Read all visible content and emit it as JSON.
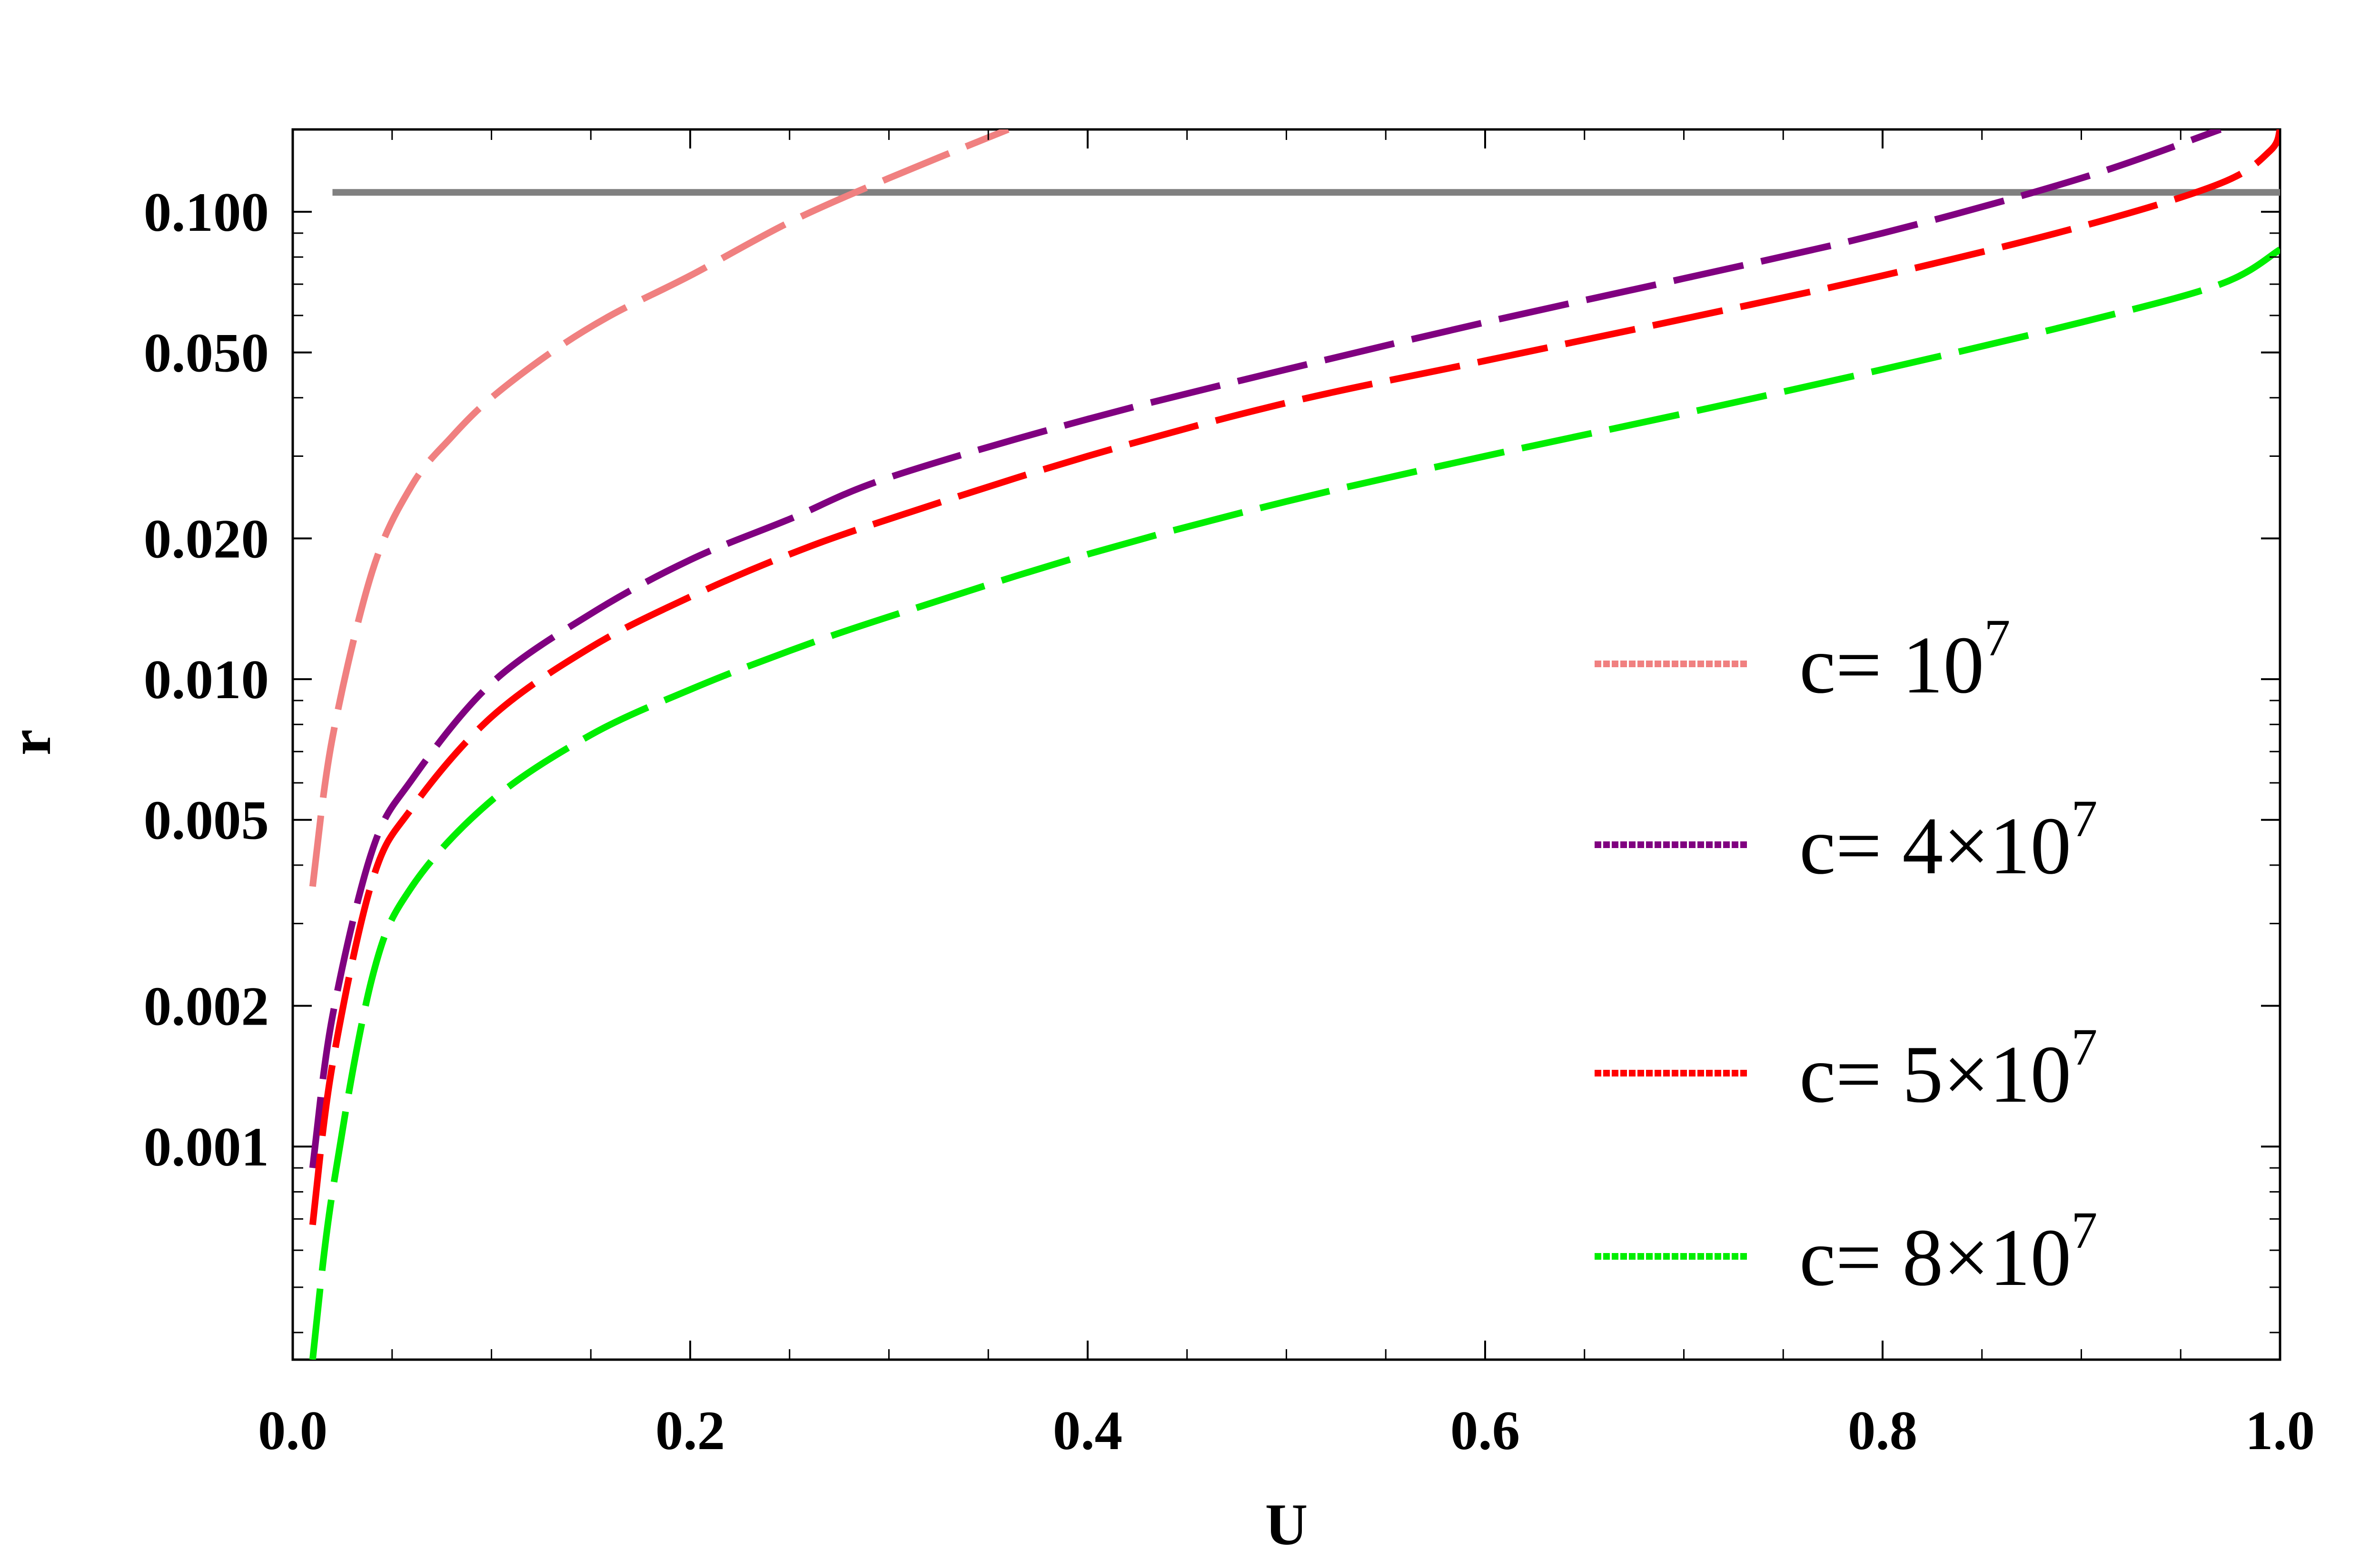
{
  "chart_data": {
    "type": "line",
    "title": "",
    "xlabel": "U",
    "ylabel": "r",
    "xlim": [
      0.0,
      1.0
    ],
    "ylim": [
      0.00035,
      0.15
    ],
    "y_scale": "log",
    "grid": false,
    "legend_position": "right",
    "x_ticks": [
      "0.0",
      "0.2",
      "0.4",
      "0.6",
      "0.8",
      "1.0"
    ],
    "x_tick_values": [
      0.0,
      0.2,
      0.4,
      0.6,
      0.8,
      1.0
    ],
    "y_ticks": [
      "0.001",
      "0.002",
      "0.005",
      "0.010",
      "0.020",
      "0.050",
      "0.100"
    ],
    "y_tick_values": [
      0.001,
      0.002,
      0.005,
      0.01,
      0.02,
      0.05,
      0.1
    ],
    "reference_line": {
      "y": 0.11,
      "color": "#808080"
    },
    "series": [
      {
        "legend_base": "c= 10",
        "legend_sup": "7",
        "color": "#F08080",
        "x": [
          0.01,
          0.02,
          0.04,
          0.06,
          0.08,
          0.1,
          0.13,
          0.16,
          0.2,
          0.25,
          0.3,
          0.36
        ],
        "y": [
          0.0036,
          0.0075,
          0.017,
          0.026,
          0.033,
          0.04,
          0.05,
          0.06,
          0.073,
          0.095,
          0.118,
          0.15
        ]
      },
      {
        "legend_base": "c= 4×10",
        "legend_sup": "7",
        "color": "#800080",
        "x": [
          0.01,
          0.02,
          0.04,
          0.06,
          0.1,
          0.15,
          0.2,
          0.25,
          0.3,
          0.4,
          0.5,
          0.6,
          0.7,
          0.8,
          0.9,
          0.97
        ],
        "y": [
          0.0009,
          0.0019,
          0.0043,
          0.0061,
          0.0098,
          0.0138,
          0.018,
          0.022,
          0.027,
          0.036,
          0.046,
          0.058,
          0.072,
          0.09,
          0.118,
          0.15
        ]
      },
      {
        "legend_base": "c= 5×10",
        "legend_sup": "7",
        "color": "#FF0000",
        "x": [
          0.01,
          0.02,
          0.04,
          0.06,
          0.1,
          0.15,
          0.2,
          0.25,
          0.3,
          0.4,
          0.5,
          0.6,
          0.7,
          0.8,
          0.9,
          0.97,
          0.995,
          1.0
        ],
        "y": [
          0.00068,
          0.0015,
          0.0037,
          0.0053,
          0.0083,
          0.0117,
          0.015,
          0.0185,
          0.022,
          0.03,
          0.039,
          0.048,
          0.059,
          0.073,
          0.093,
          0.115,
          0.135,
          0.15
        ]
      },
      {
        "legend_base": "c= 8×10",
        "legend_sup": "7",
        "color": "#00EE00",
        "x": [
          0.01,
          0.02,
          0.04,
          0.06,
          0.1,
          0.15,
          0.2,
          0.25,
          0.3,
          0.4,
          0.5,
          0.6,
          0.7,
          0.8,
          0.9,
          0.97,
          1.0
        ],
        "y": [
          0.00035,
          0.0008,
          0.0023,
          0.0036,
          0.0055,
          0.0076,
          0.0095,
          0.0115,
          0.0136,
          0.0185,
          0.024,
          0.03,
          0.037,
          0.046,
          0.058,
          0.07,
          0.083
        ]
      }
    ]
  }
}
